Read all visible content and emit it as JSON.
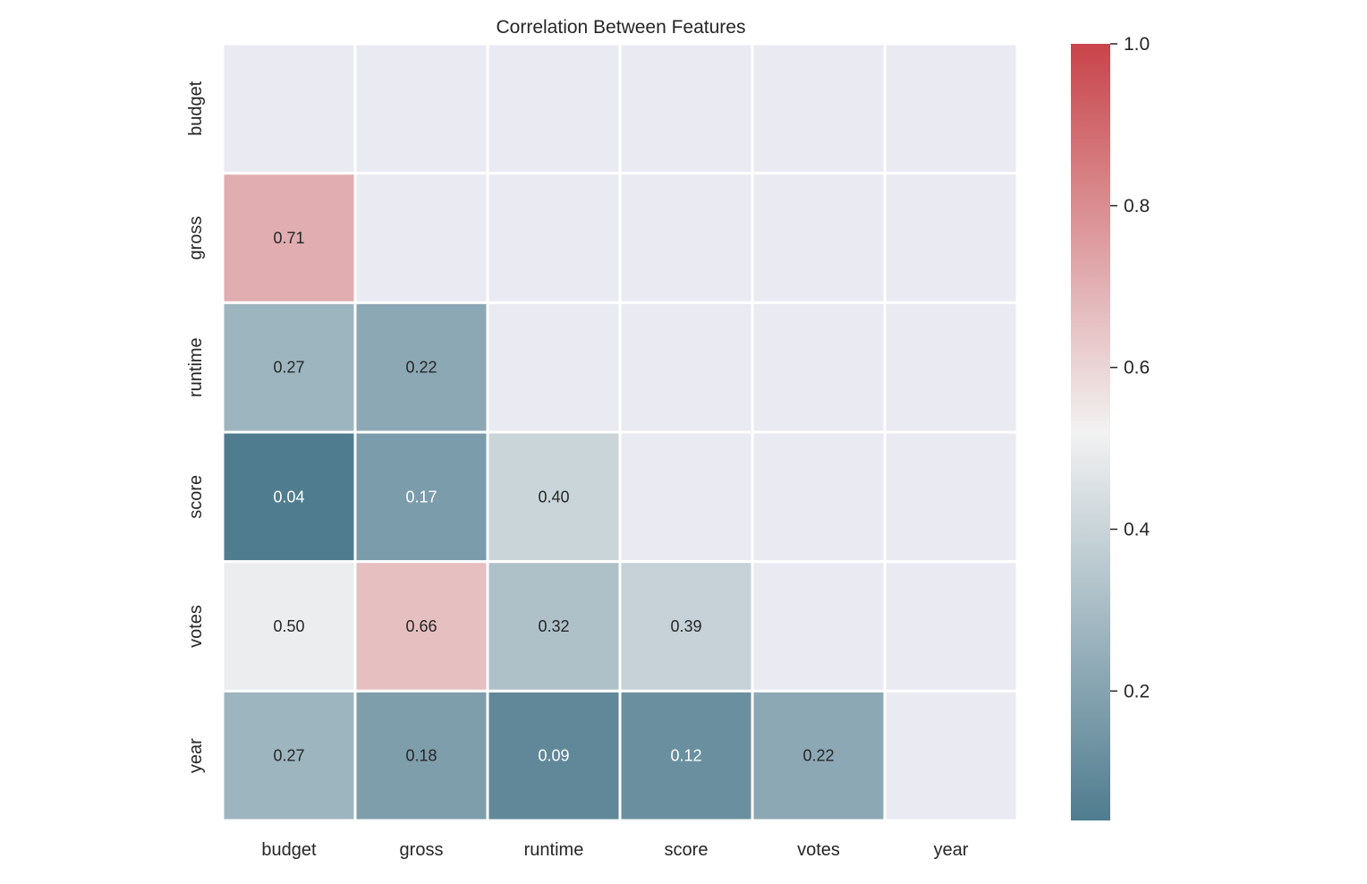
{
  "chart_data": {
    "type": "heatmap",
    "title": "Correlation Between Features",
    "rows": [
      "budget",
      "gross",
      "runtime",
      "score",
      "votes",
      "year"
    ],
    "columns": [
      "budget",
      "gross",
      "runtime",
      "score",
      "votes",
      "year"
    ],
    "values": [
      [
        null,
        null,
        null,
        null,
        null,
        null
      ],
      [
        0.71,
        null,
        null,
        null,
        null,
        null
      ],
      [
        0.27,
        0.22,
        null,
        null,
        null,
        null
      ],
      [
        0.04,
        0.17,
        0.4,
        null,
        null,
        null
      ],
      [
        0.5,
        0.66,
        0.32,
        0.39,
        null,
        null
      ],
      [
        0.27,
        0.18,
        0.09,
        0.12,
        0.22,
        null
      ]
    ],
    "mask": "upper-triangle-including-diagonal",
    "value_format": "0.00",
    "colorbar": {
      "vmin": 0.04,
      "vmax": 1.0,
      "ticks": [
        0.2,
        0.4,
        0.6,
        0.8,
        1.0
      ],
      "tick_labels": [
        "0.2",
        "0.4",
        "0.6",
        "0.8",
        "1.0"
      ],
      "colormap": "diverging blue-white-red"
    },
    "colors": {
      "low": "#4f7c8f",
      "mid": "#f2f2f2",
      "high": "#c8444a",
      "masked": "#eaeaf2",
      "grid": "#ffffff",
      "label_dark": "#262626",
      "label_light": "#ffffff"
    }
  }
}
